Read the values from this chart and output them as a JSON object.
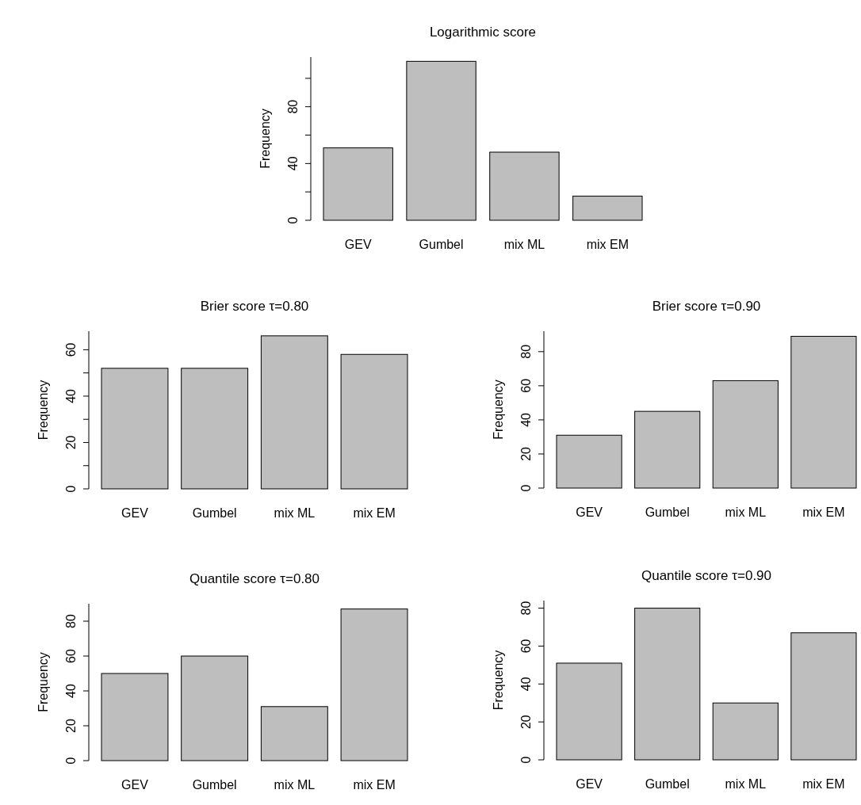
{
  "chart_data": [
    {
      "type": "bar",
      "title": "Logarithmic score",
      "ylabel": "Frequency",
      "categories": [
        "GEV",
        "Gumbel",
        "mix ML",
        "mix EM"
      ],
      "values": [
        51,
        112,
        48,
        17
      ],
      "color": "#bebebe",
      "ylim": [
        0,
        115
      ],
      "yticks": [
        0,
        {
          "value": 20,
          "label": null
        },
        40,
        {
          "value": 60,
          "label": null
        },
        80,
        {
          "value": 100,
          "label": null
        }
      ],
      "grid": false
    },
    {
      "type": "bar",
      "title": "Brier score τ=0.80",
      "ylabel": "Frequency",
      "categories": [
        "GEV",
        "Gumbel",
        "mix ML",
        "mix EM"
      ],
      "values": [
        52,
        52,
        66,
        58
      ],
      "color": "#bebebe",
      "ylim": [
        0,
        68
      ],
      "yticks": [
        0,
        {
          "value": 10,
          "label": null
        },
        20,
        {
          "value": 30,
          "label": null
        },
        40,
        {
          "value": 50,
          "label": null
        },
        60
      ],
      "grid": false
    },
    {
      "type": "bar",
      "title": "Brier score τ=0.90",
      "ylabel": "Frequency",
      "categories": [
        "GEV",
        "Gumbel",
        "mix ML",
        "mix EM"
      ],
      "values": [
        31,
        45,
        63,
        89
      ],
      "color": "#bebebe",
      "ylim": [
        0,
        92
      ],
      "yticks": [
        0,
        20,
        40,
        60,
        80
      ],
      "grid": false
    },
    {
      "type": "bar",
      "title": "Quantile score τ=0.80",
      "ylabel": "Frequency",
      "categories": [
        "GEV",
        "Gumbel",
        "mix ML",
        "mix EM"
      ],
      "values": [
        50,
        60,
        31,
        87
      ],
      "color": "#bebebe",
      "ylim": [
        0,
        90
      ],
      "yticks": [
        0,
        20,
        40,
        60,
        80
      ],
      "grid": false
    },
    {
      "type": "bar",
      "title": "Quantile score τ=0.90",
      "ylabel": "Frequency",
      "categories": [
        "GEV",
        "Gumbel",
        "mix ML",
        "mix EM"
      ],
      "values": [
        51,
        80,
        30,
        67
      ],
      "color": "#bebebe",
      "ylim": [
        0,
        84
      ],
      "yticks": [
        0,
        20,
        40,
        60,
        80
      ],
      "grid": false
    }
  ]
}
